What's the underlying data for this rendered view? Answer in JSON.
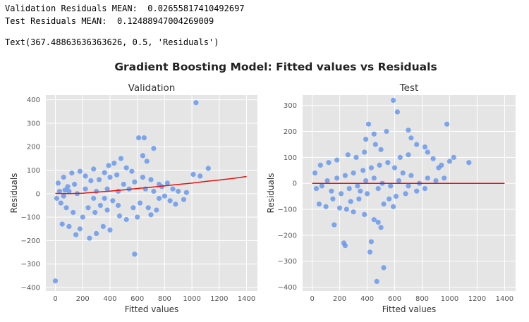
{
  "output": {
    "line1": "Validation Residuals MEAN:  0.02655817410492697",
    "line2": "Test Residuals MEAN:  0.12488947004269009",
    "line3": "Text(367.48863636363626, 0.5, 'Residuals')"
  },
  "figure": {
    "suptitle": "Gradient Boosting Model: Fitted values vs Residuals"
  },
  "colors": {
    "plot_bg": "#e5e5e5",
    "grid": "#ffffff",
    "point": "#6495ed",
    "trend": "#e8110e",
    "tick_text": "#555555",
    "label_text": "#333333"
  },
  "chart_data": [
    {
      "type": "scatter",
      "title": "Validation",
      "xlabel": "Fitted values",
      "ylabel": "Residuals",
      "xlim": [
        -70,
        1480
      ],
      "ylim": [
        -415,
        420
      ],
      "xticks": [
        0,
        200,
        400,
        600,
        800,
        1000,
        1200,
        1400
      ],
      "yticks": [
        -400,
        -300,
        -200,
        -100,
        0,
        100,
        200,
        300,
        400
      ],
      "ytick_labels": [
        "−400",
        "−300",
        "−200",
        "−100",
        "0",
        "100",
        "200",
        "300",
        "400"
      ],
      "mean_residual": 0.02655817410492697,
      "points": [
        [
          0,
          -372
        ],
        [
          1030,
          388
        ],
        [
          580,
          -258
        ],
        [
          650,
          238
        ],
        [
          610,
          238
        ],
        [
          720,
          193
        ],
        [
          640,
          162
        ],
        [
          670,
          138
        ],
        [
          1120,
          108
        ],
        [
          1010,
          82
        ],
        [
          1060,
          75
        ],
        [
          940,
          -25
        ],
        [
          880,
          -45
        ],
        [
          820,
          45
        ],
        [
          780,
          30
        ],
        [
          740,
          -70
        ],
        [
          700,
          -90
        ],
        [
          680,
          -60
        ],
        [
          600,
          -100
        ],
        [
          520,
          -110
        ],
        [
          400,
          -155
        ],
        [
          250,
          -190
        ],
        [
          300,
          -170
        ],
        [
          150,
          -175
        ],
        [
          100,
          -140
        ],
        [
          50,
          -130
        ],
        [
          180,
          -150
        ],
        [
          350,
          -140
        ],
        [
          470,
          -95
        ],
        [
          430,
          130
        ],
        [
          480,
          150
        ],
        [
          390,
          120
        ],
        [
          280,
          105
        ],
        [
          180,
          95
        ],
        [
          120,
          88
        ],
        [
          60,
          70
        ],
        [
          20,
          45
        ],
        [
          520,
          110
        ],
        [
          560,
          95
        ],
        [
          640,
          70
        ],
        [
          700,
          60
        ],
        [
          760,
          40
        ],
        [
          860,
          20
        ],
        [
          900,
          10
        ],
        [
          960,
          5
        ],
        [
          800,
          -10
        ],
        [
          840,
          -30
        ],
        [
          760,
          -20
        ],
        [
          620,
          -40
        ],
        [
          570,
          -60
        ],
        [
          450,
          80
        ],
        [
          400,
          70
        ],
        [
          360,
          90
        ],
        [
          320,
          60
        ],
        [
          260,
          55
        ],
        [
          220,
          75
        ],
        [
          140,
          40
        ],
        [
          90,
          30
        ],
        [
          70,
          15
        ],
        [
          30,
          10
        ],
        [
          10,
          -20
        ],
        [
          40,
          -40
        ],
        [
          80,
          -60
        ],
        [
          130,
          -80
        ],
        [
          200,
          -100
        ],
        [
          240,
          -60
        ],
        [
          290,
          -80
        ],
        [
          330,
          -50
        ],
        [
          380,
          -70
        ],
        [
          420,
          -30
        ],
        [
          460,
          -50
        ],
        [
          500,
          40
        ],
        [
          540,
          20
        ],
        [
          580,
          50
        ],
        [
          660,
          20
        ],
        [
          720,
          10
        ],
        [
          460,
          10
        ],
        [
          380,
          20
        ],
        [
          300,
          10
        ],
        [
          220,
          20
        ],
        [
          160,
          0
        ],
        [
          100,
          10
        ],
        [
          60,
          -10
        ],
        [
          360,
          -20
        ],
        [
          280,
          -20
        ]
      ],
      "trend": {
        "x": [
          0,
          100,
          200,
          300,
          400,
          500,
          600,
          700,
          800,
          900,
          1000,
          1100,
          1200,
          1300,
          1400
        ],
        "y": [
          1,
          0,
          2,
          6,
          11,
          16,
          22,
          27,
          33,
          39,
          45,
          52,
          58,
          65,
          73
        ]
      }
    },
    {
      "type": "scatter",
      "title": "Test",
      "xlabel": "Fitted values",
      "ylabel": "Residuals",
      "xlim": [
        -70,
        1480
      ],
      "ylim": [
        -415,
        340
      ],
      "xticks": [
        0,
        200,
        400,
        600,
        800,
        1000,
        1200,
        1400
      ],
      "yticks": [
        -400,
        -300,
        -200,
        -100,
        0,
        100,
        200,
        300
      ],
      "ytick_labels": [
        "−400",
        "−300",
        "−200",
        "−100",
        "0",
        "100",
        "200",
        "300"
      ],
      "mean_residual": 0.12488947004269009,
      "points": [
        [
          590,
          320
        ],
        [
          620,
          275
        ],
        [
          980,
          228
        ],
        [
          410,
          228
        ],
        [
          700,
          205
        ],
        [
          540,
          200
        ],
        [
          450,
          190
        ],
        [
          720,
          175
        ],
        [
          390,
          170
        ],
        [
          760,
          150
        ],
        [
          820,
          140
        ],
        [
          840,
          120
        ],
        [
          880,
          95
        ],
        [
          940,
          70
        ],
        [
          1000,
          85
        ],
        [
          1140,
          80
        ],
        [
          1030,
          100
        ],
        [
          920,
          60
        ],
        [
          700,
          110
        ],
        [
          640,
          100
        ],
        [
          500,
          130
        ],
        [
          460,
          150
        ],
        [
          380,
          120
        ],
        [
          320,
          100
        ],
        [
          260,
          110
        ],
        [
          180,
          90
        ],
        [
          120,
          80
        ],
        [
          60,
          70
        ],
        [
          20,
          40
        ],
        [
          160,
          -160
        ],
        [
          230,
          -230
        ],
        [
          240,
          -240
        ],
        [
          470,
          -378
        ],
        [
          520,
          -325
        ],
        [
          420,
          -265
        ],
        [
          430,
          -225
        ],
        [
          450,
          -140
        ],
        [
          480,
          -150
        ],
        [
          500,
          -170
        ],
        [
          380,
          -120
        ],
        [
          300,
          -110
        ],
        [
          250,
          -100
        ],
        [
          200,
          -95
        ],
        [
          100,
          -90
        ],
        [
          50,
          -80
        ],
        [
          150,
          -60
        ],
        [
          280,
          -70
        ],
        [
          340,
          -60
        ],
        [
          560,
          -60
        ],
        [
          610,
          -50
        ],
        [
          680,
          -40
        ],
        [
          760,
          -30
        ],
        [
          820,
          -20
        ],
        [
          900,
          10
        ],
        [
          960,
          20
        ],
        [
          720,
          30
        ],
        [
          660,
          40
        ],
        [
          600,
          60
        ],
        [
          550,
          80
        ],
        [
          490,
          70
        ],
        [
          430,
          60
        ],
        [
          370,
          50
        ],
        [
          300,
          40
        ],
        [
          240,
          30
        ],
        [
          180,
          20
        ],
        [
          110,
          10
        ],
        [
          70,
          -10
        ],
        [
          30,
          -20
        ],
        [
          140,
          -30
        ],
        [
          210,
          -40
        ],
        [
          270,
          -20
        ],
        [
          330,
          -10
        ],
        [
          390,
          10
        ],
        [
          450,
          20
        ],
        [
          510,
          0
        ],
        [
          570,
          -10
        ],
        [
          630,
          10
        ],
        [
          700,
          -10
        ],
        [
          780,
          0
        ],
        [
          840,
          20
        ],
        [
          400,
          -40
        ],
        [
          350,
          -30
        ],
        [
          480,
          -20
        ],
        [
          520,
          -80
        ],
        [
          590,
          -90
        ]
      ],
      "trend": {
        "x": [
          0,
          1400
        ],
        "y": [
          0,
          0
        ]
      }
    }
  ]
}
